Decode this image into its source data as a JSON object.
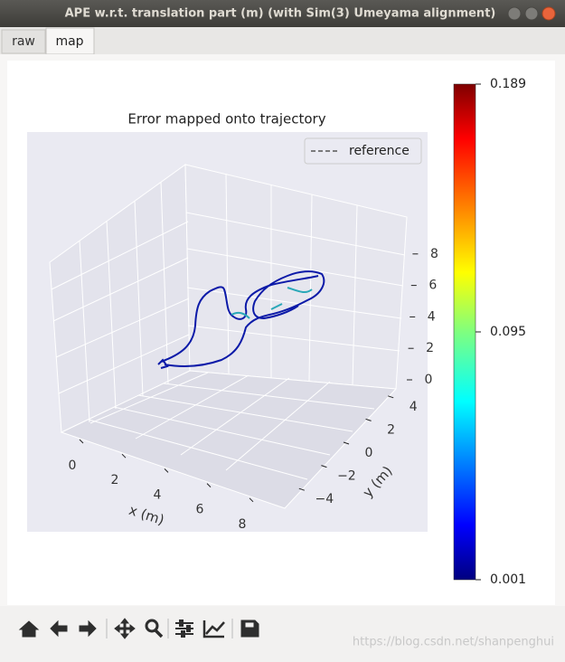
{
  "window": {
    "title": "APE w.r.t. translation part (m) (with Sim(3) Umeyama alignment)"
  },
  "tabs": [
    "raw",
    "map"
  ],
  "plot": {
    "title": "Error mapped onto trajectory",
    "legend": "reference",
    "x_label": "x (m)",
    "y_label": "y (m)",
    "x_ticks": [
      0,
      2,
      4,
      6,
      8
    ],
    "y_ticks": [
      4,
      2,
      0,
      {
        "value": -2,
        "label": "−2"
      },
      {
        "value": -4,
        "label": "−4"
      }
    ],
    "z_ticks": [
      0,
      2,
      4,
      6,
      8
    ]
  },
  "colorbar": {
    "lim": [
      0.001,
      0.189
    ],
    "ticks": [
      0.189,
      0.095,
      0.001
    ]
  },
  "watermark": "https://blog.csdn.net/shanpenghui"
}
